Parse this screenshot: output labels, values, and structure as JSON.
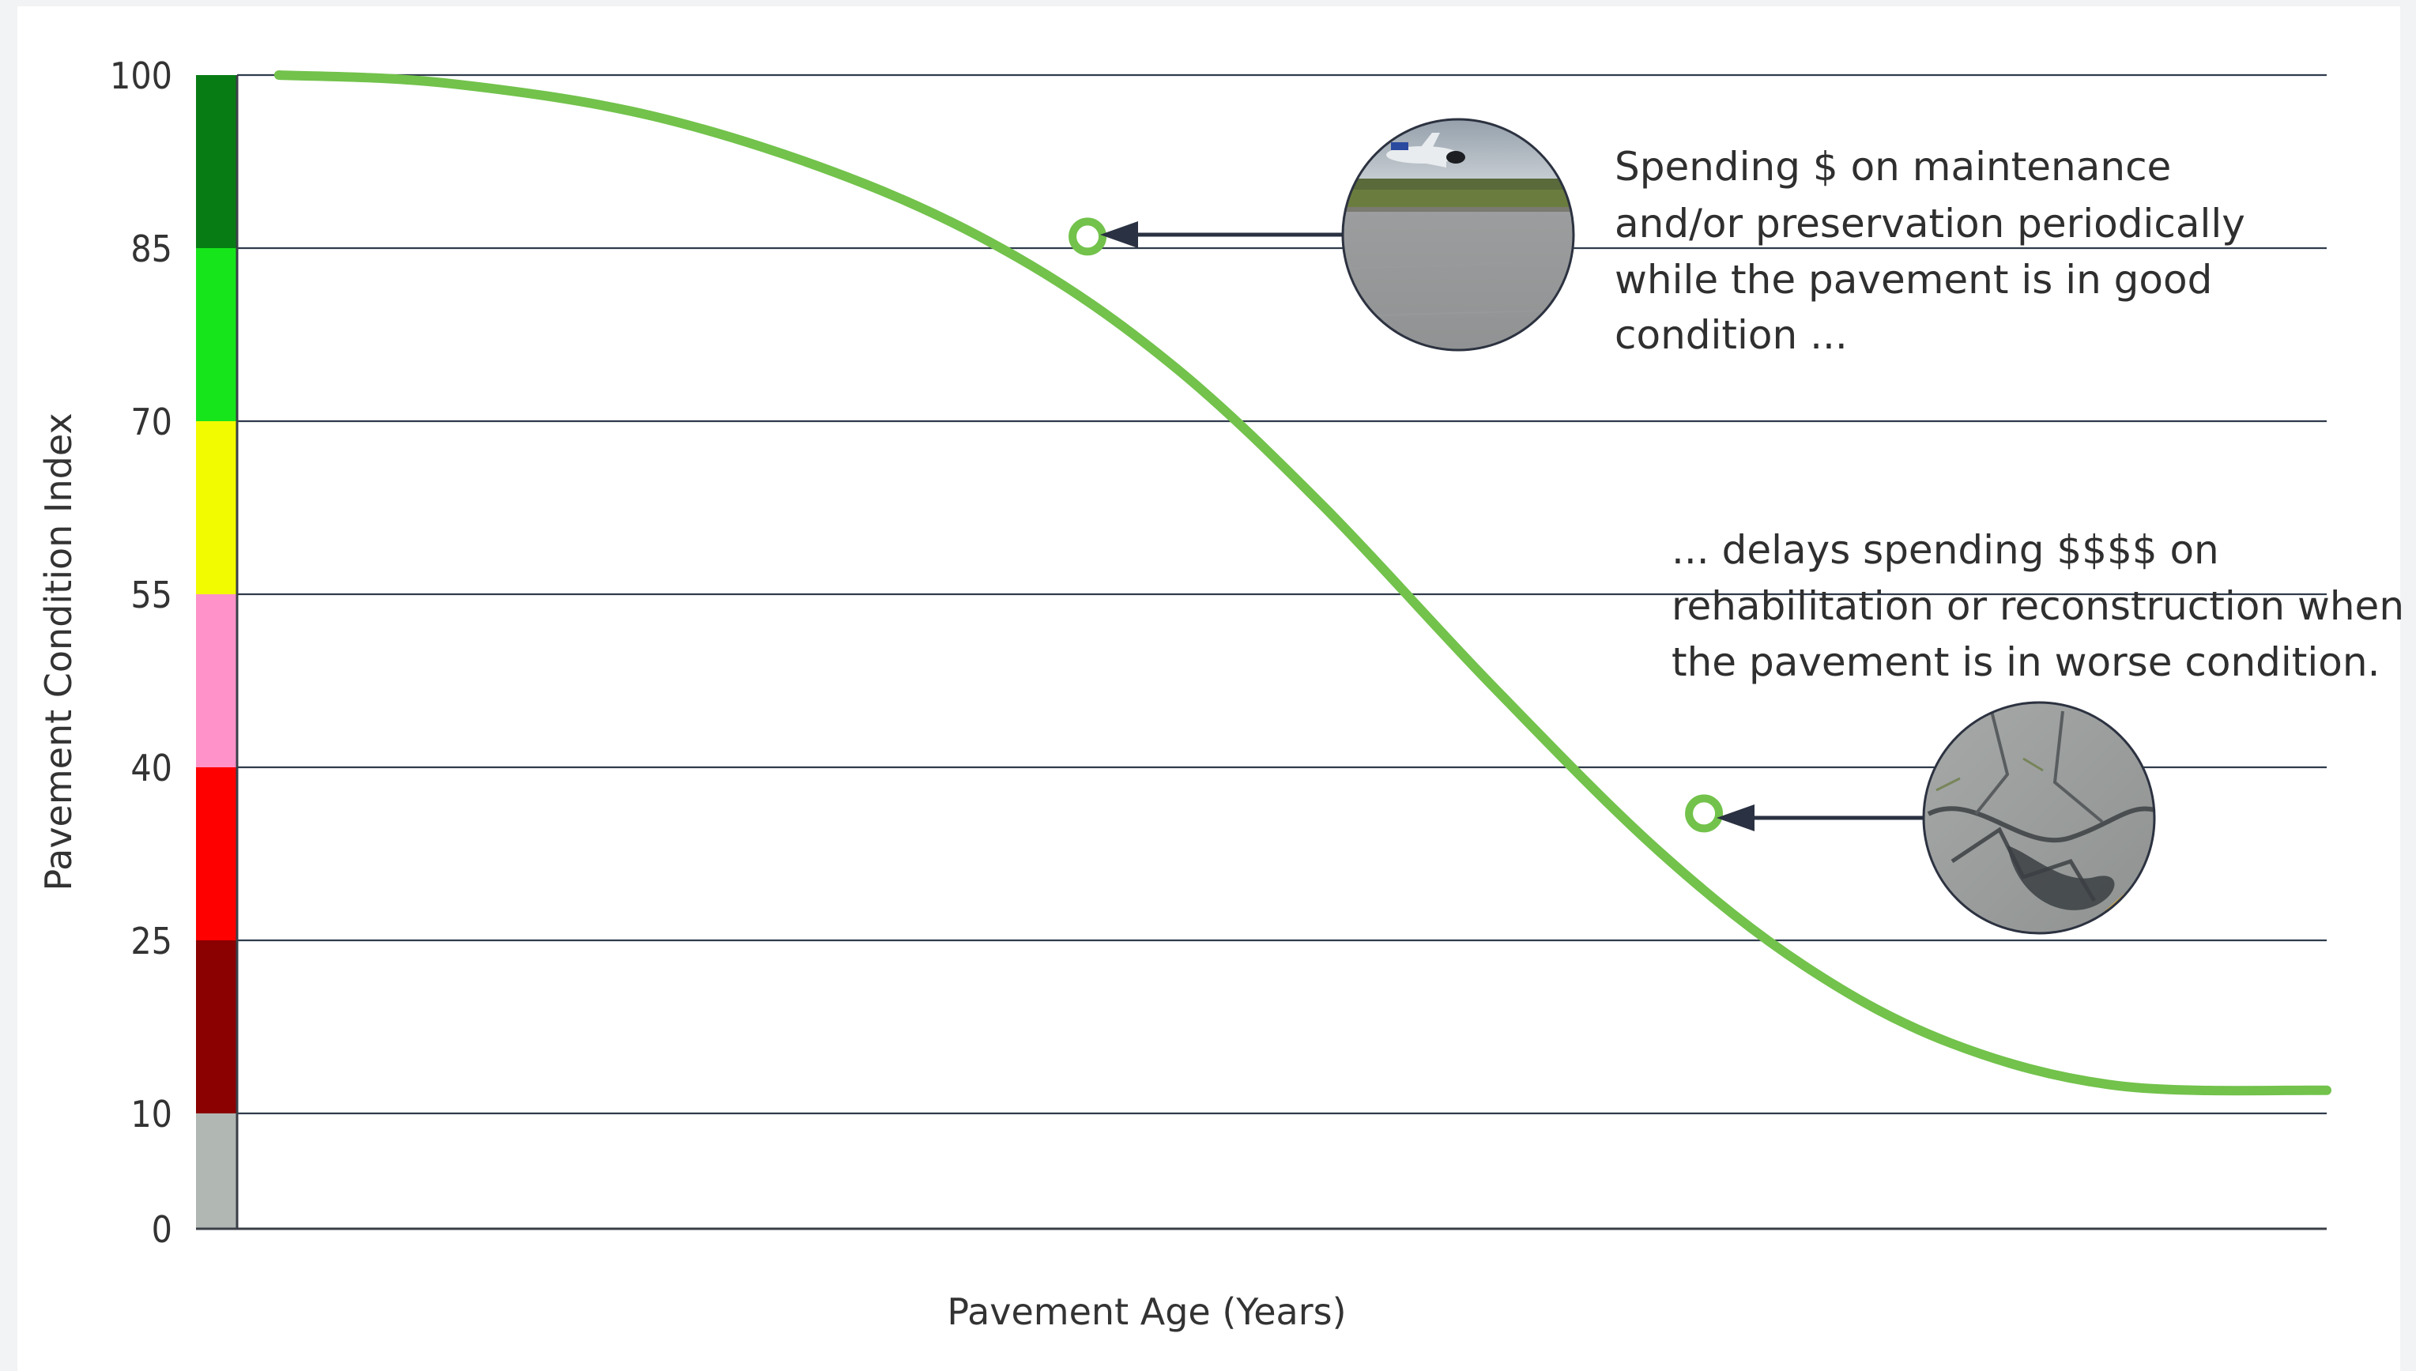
{
  "chart_data": {
    "type": "line",
    "title": "",
    "xlabel": "Pavement Age (Years)",
    "ylabel": "Pavement Condition Index",
    "ylim": [
      0,
      100
    ],
    "xlim": [
      0,
      100
    ],
    "grid": true,
    "y_ticks": [
      0,
      10,
      25,
      40,
      55,
      70,
      85,
      100
    ],
    "condition_bands": [
      {
        "from": 0,
        "to": 10,
        "color": "#b1b7b3"
      },
      {
        "from": 10,
        "to": 25,
        "color": "#8b0000"
      },
      {
        "from": 25,
        "to": 40,
        "color": "#ff0000"
      },
      {
        "from": 40,
        "to": 55,
        "color": "#ff93c9"
      },
      {
        "from": 55,
        "to": 70,
        "color": "#f2fb00"
      },
      {
        "from": 70,
        "to": 85,
        "color": "#17e51c"
      },
      {
        "from": 85,
        "to": 100,
        "color": "#087c14"
      }
    ],
    "series": [
      {
        "color": "#72c24b",
        "x": [
          2,
          10,
          20,
          30,
          38,
          45,
          52,
          60,
          68,
          75,
          82,
          90,
          100
        ],
        "y": [
          100,
          99.3,
          96.4,
          90.6,
          83.5,
          74.5,
          62.6,
          47.2,
          32.8,
          22.8,
          16.1,
          12.4,
          12
        ]
      }
    ],
    "markers": [
      {
        "x": 40.7,
        "y": 86
      },
      {
        "x": 70.2,
        "y": 36
      }
    ],
    "annotations": [
      {
        "lines": [
          "Spending $ on maintenance",
          "and/or preservation periodically",
          "while the pavement is in good",
          "condition ..."
        ]
      },
      {
        "lines": [
          "... delays spending $$$$ on",
          "rehabilitation or reconstruction when",
          "the pavement is in worse condition."
        ]
      }
    ],
    "photos": [
      "airport-runway-photo",
      "cracked-pavement-photo"
    ]
  }
}
